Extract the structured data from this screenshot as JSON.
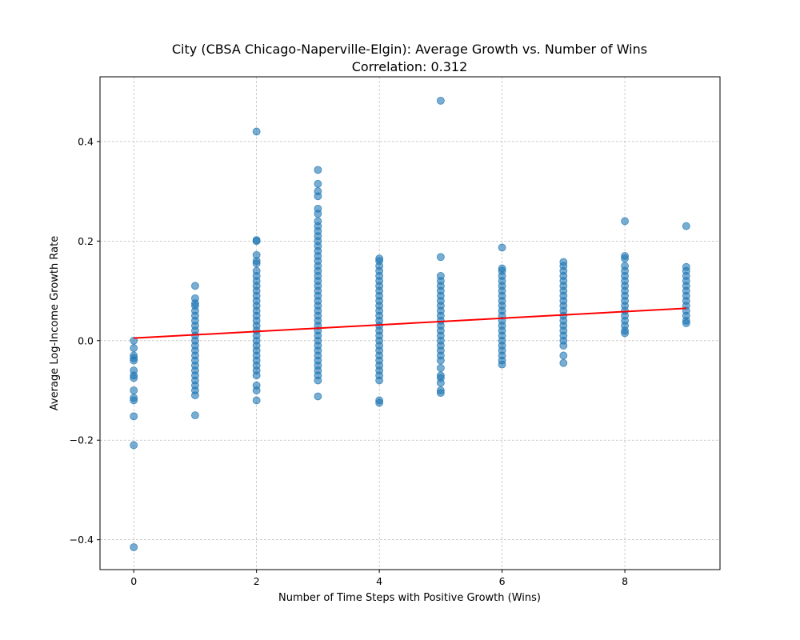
{
  "chart_data": {
    "type": "scatter",
    "title": "City (CBSA Chicago-Naperville-Elgin): Average Growth vs. Number of Wins",
    "subtitle": "Correlation: 0.312",
    "xlabel": "Number of Time Steps with Positive Growth (Wins)",
    "ylabel": "Average Log-Income Growth Rate",
    "xlim": [
      -0.55,
      9.55
    ],
    "ylim": [
      -0.46,
      0.53
    ],
    "xticks": [
      0,
      2,
      4,
      6,
      8
    ],
    "xtick_labels": [
      "0",
      "2",
      "4",
      "6",
      "8"
    ],
    "yticks": [
      -0.4,
      -0.2,
      0.0,
      0.2,
      0.4
    ],
    "ytick_labels": [
      "−0.4",
      "−0.2",
      "0.0",
      "0.2",
      "0.4"
    ],
    "grid": true,
    "colors": {
      "points": "#1f77b4",
      "trend": "#ff0000",
      "grid": "#b0b0b0"
    },
    "series": [
      {
        "x": 0,
        "y": [
          0.0,
          -0.015,
          -0.03,
          -0.035,
          -0.04,
          -0.06,
          -0.07,
          -0.075,
          -0.1,
          -0.115,
          -0.12,
          -0.152,
          -0.21,
          -0.415
        ]
      },
      {
        "x": 1,
        "y": [
          0.11,
          0.085,
          0.075,
          0.07,
          0.06,
          0.05,
          0.04,
          0.03,
          0.02,
          0.01,
          0.0,
          -0.01,
          -0.02,
          -0.03,
          -0.04,
          -0.05,
          -0.06,
          -0.07,
          -0.08,
          -0.09,
          -0.1,
          -0.11,
          -0.15
        ]
      },
      {
        "x": 2,
        "y": [
          0.42,
          0.202,
          0.2,
          0.172,
          0.16,
          0.155,
          0.14,
          0.13,
          0.12,
          0.11,
          0.1,
          0.09,
          0.08,
          0.07,
          0.06,
          0.05,
          0.04,
          0.03,
          0.02,
          0.01,
          0.0,
          -0.01,
          -0.02,
          -0.03,
          -0.04,
          -0.05,
          -0.06,
          -0.07,
          -0.09,
          -0.1,
          -0.12
        ]
      },
      {
        "x": 3,
        "y": [
          0.343,
          0.315,
          0.3,
          0.29,
          0.265,
          0.255,
          0.24,
          0.23,
          0.22,
          0.21,
          0.2,
          0.19,
          0.18,
          0.17,
          0.16,
          0.15,
          0.14,
          0.13,
          0.12,
          0.11,
          0.1,
          0.09,
          0.08,
          0.07,
          0.06,
          0.05,
          0.04,
          0.03,
          0.02,
          0.01,
          0.0,
          -0.01,
          -0.02,
          -0.03,
          -0.04,
          -0.05,
          -0.06,
          -0.07,
          -0.08,
          -0.112
        ]
      },
      {
        "x": 4,
        "y": [
          0.165,
          0.16,
          0.15,
          0.14,
          0.13,
          0.12,
          0.11,
          0.1,
          0.09,
          0.08,
          0.07,
          0.06,
          0.05,
          0.04,
          0.03,
          0.02,
          0.01,
          0.0,
          -0.01,
          -0.02,
          -0.03,
          -0.04,
          -0.05,
          -0.06,
          -0.07,
          -0.08,
          -0.12,
          -0.125
        ]
      },
      {
        "x": 5,
        "y": [
          0.482,
          0.168,
          0.13,
          0.12,
          0.11,
          0.1,
          0.09,
          0.08,
          0.07,
          0.06,
          0.05,
          0.04,
          0.03,
          0.02,
          0.01,
          0.0,
          -0.01,
          -0.02,
          -0.03,
          -0.04,
          -0.055,
          -0.07,
          -0.075,
          -0.085,
          -0.1,
          -0.105
        ]
      },
      {
        "x": 6,
        "y": [
          0.187,
          0.145,
          0.14,
          0.13,
          0.12,
          0.11,
          0.1,
          0.09,
          0.08,
          0.07,
          0.06,
          0.05,
          0.04,
          0.03,
          0.02,
          0.01,
          0.0,
          -0.01,
          -0.02,
          -0.03,
          -0.04,
          -0.048
        ]
      },
      {
        "x": 7,
        "y": [
          0.158,
          0.15,
          0.14,
          0.13,
          0.12,
          0.11,
          0.1,
          0.09,
          0.08,
          0.07,
          0.06,
          0.05,
          0.04,
          0.03,
          0.02,
          0.01,
          0.0,
          -0.01,
          -0.03,
          -0.045
        ]
      },
      {
        "x": 8,
        "y": [
          0.24,
          0.17,
          0.165,
          0.15,
          0.14,
          0.13,
          0.12,
          0.11,
          0.1,
          0.09,
          0.08,
          0.07,
          0.06,
          0.05,
          0.04,
          0.03,
          0.02,
          0.015
        ]
      },
      {
        "x": 9,
        "y": [
          0.23,
          0.148,
          0.14,
          0.13,
          0.12,
          0.11,
          0.1,
          0.09,
          0.08,
          0.07,
          0.06,
          0.05,
          0.04,
          0.035
        ]
      }
    ],
    "trend_line": {
      "x": [
        0,
        9
      ],
      "y": [
        0.005,
        0.065
      ]
    }
  }
}
